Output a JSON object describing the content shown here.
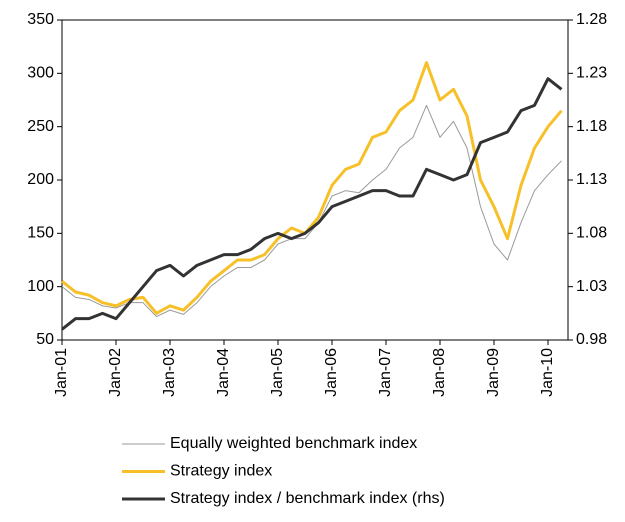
{
  "chart_data": {
    "type": "line",
    "categories": [
      "Jan-01",
      null,
      null,
      null,
      "Jan-02",
      null,
      null,
      null,
      "Jan-03",
      null,
      null,
      null,
      "Jan-04",
      null,
      null,
      null,
      "Jan-05",
      null,
      null,
      null,
      "Jan-06",
      null,
      null,
      null,
      "Jan-07",
      null,
      null,
      null,
      "Jan-08",
      null,
      null,
      null,
      "Jan-09",
      null,
      null,
      null,
      "Jan-10",
      null
    ],
    "series": [
      {
        "name": "Equally weighted benchmark index",
        "color": "#9a9a9a",
        "width": 1,
        "values": [
          100,
          90,
          88,
          82,
          80,
          85,
          85,
          72,
          78,
          74,
          85,
          100,
          110,
          118,
          118,
          125,
          140,
          145,
          145,
          160,
          185,
          190,
          188,
          200,
          210,
          230,
          240,
          270,
          240,
          255,
          230,
          175,
          140,
          125,
          160,
          190,
          205,
          218
        ]
      },
      {
        "name": "Strategy index",
        "color": "#f7c028",
        "width": 3,
        "values": [
          105,
          95,
          92,
          85,
          82,
          88,
          90,
          75,
          82,
          78,
          90,
          105,
          115,
          125,
          125,
          130,
          145,
          155,
          150,
          165,
          195,
          210,
          215,
          240,
          245,
          265,
          275,
          310,
          275,
          285,
          260,
          200,
          175,
          145,
          195,
          230,
          250,
          265
        ]
      },
      {
        "name": "Strategy index / benchmark index (rhs)",
        "color": "#333333",
        "width": 3,
        "axis": "y2",
        "values": [
          0.99,
          1.0,
          1.0,
          1.005,
          1.0,
          1.015,
          1.03,
          1.045,
          1.05,
          1.04,
          1.05,
          1.055,
          1.06,
          1.06,
          1.065,
          1.075,
          1.08,
          1.075,
          1.08,
          1.09,
          1.105,
          1.11,
          1.115,
          1.12,
          1.12,
          1.115,
          1.115,
          1.14,
          1.135,
          1.13,
          1.135,
          1.165,
          1.17,
          1.175,
          1.195,
          1.2,
          1.225,
          1.215
        ]
      }
    ],
    "ylim": [
      50,
      350
    ],
    "yticks": [
      50,
      100,
      150,
      200,
      250,
      300,
      350
    ],
    "y2lim": [
      0.98,
      1.28
    ],
    "y2ticks": [
      0.98,
      1.03,
      1.08,
      1.13,
      1.18,
      1.23,
      1.28
    ]
  }
}
